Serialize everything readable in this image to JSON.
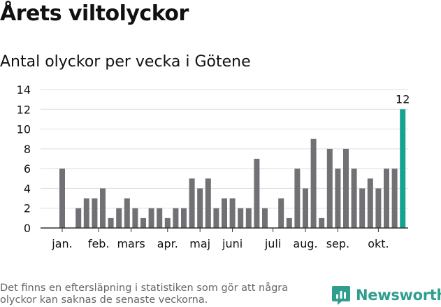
{
  "header": {
    "title": "Årets viltolyckor",
    "subtitle": "Antal olyckor per vecka i Götene"
  },
  "footer": {
    "note": "Det finns en eftersläpning i statistiken som gör att några olyckor kan saknas de senaste veckorna.",
    "brand": "Newsworthy"
  },
  "colors": {
    "bar": "#717075",
    "highlight": "#16a394",
    "grid": "#dddddd",
    "axis": "#333333",
    "text": "#111111",
    "footnote": "#666666",
    "brand": "#2f9e8f"
  },
  "chart_data": {
    "type": "bar",
    "title": "Antal olyckor per vecka i Götene",
    "xlabel": "",
    "ylabel": "",
    "ylim": [
      0,
      14
    ],
    "yticks": [
      0,
      2,
      4,
      6,
      8,
      10,
      12,
      14
    ],
    "grid": true,
    "weeks": [
      1,
      2,
      3,
      4,
      5,
      6,
      7,
      8,
      9,
      10,
      11,
      12,
      13,
      14,
      15,
      16,
      17,
      18,
      19,
      20,
      21,
      22,
      23,
      24,
      25,
      26,
      27,
      28,
      29,
      30,
      31,
      32,
      33,
      34,
      35,
      36,
      37,
      38,
      39,
      40,
      41,
      42,
      43,
      44
    ],
    "values": [
      6,
      0,
      2,
      3,
      3,
      4,
      1,
      2,
      3,
      2,
      1,
      2,
      2,
      1,
      2,
      2,
      5,
      4,
      5,
      2,
      3,
      3,
      2,
      2,
      7,
      2,
      0,
      3,
      1,
      6,
      4,
      9,
      1,
      8,
      6,
      8,
      6,
      4,
      5,
      4,
      6,
      6,
      12,
      0
    ],
    "highlight_index": 42,
    "highlight_label": "12",
    "month_labels": [
      {
        "label": "jan.",
        "week": 1
      },
      {
        "label": "feb.",
        "week": 5.5
      },
      {
        "label": "mars",
        "week": 9.5
      },
      {
        "label": "apr.",
        "week": 14
      },
      {
        "label": "maj",
        "week": 18
      },
      {
        "label": "juni",
        "week": 22
      },
      {
        "label": "juli",
        "week": 27
      },
      {
        "label": "aug.",
        "week": 31
      },
      {
        "label": "sep.",
        "week": 35
      },
      {
        "label": "okt.",
        "week": 40
      }
    ]
  }
}
